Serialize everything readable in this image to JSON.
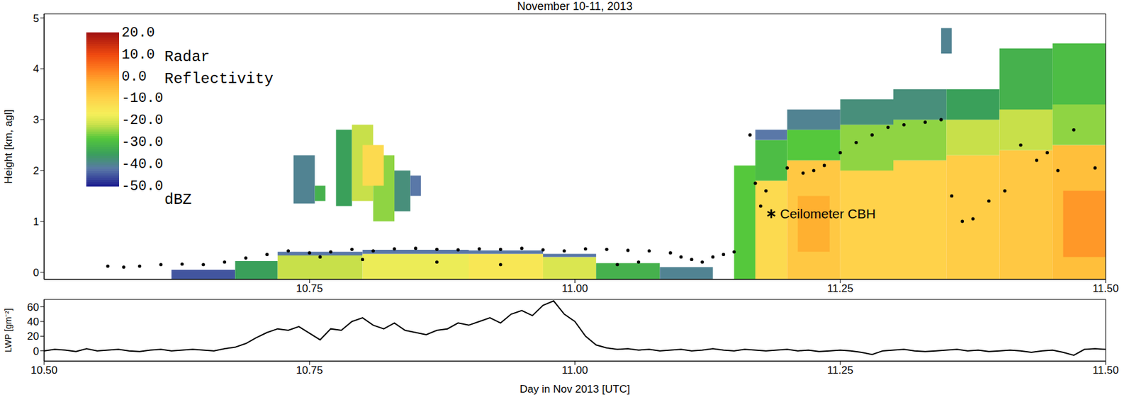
{
  "chart_data": [
    {
      "type": "heatmap",
      "title": "November 10-11, 2013",
      "ylabel": "Height [km, agl]",
      "xlim": [
        10.5,
        11.5
      ],
      "xticks": [
        10.75,
        {
          "value": 11,
          "label": "11.00"
        },
        11.25,
        {
          "value": 11.5,
          "label": "11.50"
        }
      ],
      "ylim": [
        -0.14,
        5.08
      ],
      "yticks": [
        0,
        1,
        2,
        3,
        4,
        5
      ],
      "colorbar": {
        "label": "Radar Reflectivity",
        "unit": "dBZ",
        "range": [
          -50,
          20
        ],
        "ticks": [
          {
            "value": -50,
            "label": "-50.0"
          },
          {
            "value": -40,
            "label": "-40.0"
          },
          {
            "value": -30,
            "label": "-30.0"
          },
          {
            "value": -20,
            "label": "-20.0"
          },
          {
            "value": -10,
            "label": "-10.0"
          },
          {
            "value": 0,
            "label": "0.0"
          },
          {
            "value": 10,
            "label": "10.0"
          },
          {
            "value": 20,
            "label": "20.0"
          }
        ]
      },
      "cells": [
        {
          "x0": 10.62,
          "x1": 10.68,
          "y0": -0.14,
          "y1": 0.05,
          "dbz": -45
        },
        {
          "x0": 10.68,
          "x1": 10.72,
          "y0": -0.14,
          "y1": 0.22,
          "dbz": -35
        },
        {
          "x0": 10.72,
          "x1": 10.8,
          "y0": -0.14,
          "y1": 0.33,
          "dbz": -22
        },
        {
          "x0": 10.72,
          "x1": 10.8,
          "y0": 0.33,
          "y1": 0.4,
          "dbz": -42
        },
        {
          "x0": 10.8,
          "x1": 10.9,
          "y0": -0.14,
          "y1": 0.36,
          "dbz": -18
        },
        {
          "x0": 10.8,
          "x1": 10.9,
          "y0": 0.36,
          "y1": 0.44,
          "dbz": -42
        },
        {
          "x0": 10.9,
          "x1": 10.97,
          "y0": -0.14,
          "y1": 0.36,
          "dbz": -15
        },
        {
          "x0": 10.9,
          "x1": 10.97,
          "y0": 0.36,
          "y1": 0.43,
          "dbz": -42
        },
        {
          "x0": 10.97,
          "x1": 11.02,
          "y0": -0.14,
          "y1": 0.3,
          "dbz": -20
        },
        {
          "x0": 10.97,
          "x1": 11.02,
          "y0": 0.3,
          "y1": 0.36,
          "dbz": -42
        },
        {
          "x0": 11.02,
          "x1": 11.08,
          "y0": -0.14,
          "y1": 0.18,
          "dbz": -32
        },
        {
          "x0": 11.08,
          "x1": 11.13,
          "y0": -0.14,
          "y1": 0.1,
          "dbz": -40
        },
        {
          "x0": 10.735,
          "x1": 10.755,
          "y0": 1.35,
          "y1": 2.3,
          "dbz": -40
        },
        {
          "x0": 10.755,
          "x1": 10.765,
          "y0": 1.4,
          "y1": 1.7,
          "dbz": -32
        },
        {
          "x0": 10.775,
          "x1": 10.79,
          "y0": 1.3,
          "y1": 2.8,
          "dbz": -35
        },
        {
          "x0": 10.79,
          "x1": 10.81,
          "y0": 1.4,
          "y1": 2.9,
          "dbz": -22
        },
        {
          "x0": 10.81,
          "x1": 10.83,
          "y0": 1.0,
          "y1": 2.3,
          "dbz": -25
        },
        {
          "x0": 10.83,
          "x1": 10.845,
          "y0": 1.2,
          "y1": 2.0,
          "dbz": -38
        },
        {
          "x0": 10.845,
          "x1": 10.855,
          "y0": 1.5,
          "y1": 1.9,
          "dbz": -42
        },
        {
          "x0": 10.8,
          "x1": 10.82,
          "y0": 1.7,
          "y1": 2.5,
          "dbz": -12
        },
        {
          "x0": 11.15,
          "x1": 11.17,
          "y0": -0.14,
          "y1": 2.1,
          "dbz": -28
        },
        {
          "x0": 11.17,
          "x1": 11.2,
          "y0": -0.14,
          "y1": 1.8,
          "dbz": -12
        },
        {
          "x0": 11.17,
          "x1": 11.2,
          "y0": 1.8,
          "y1": 2.6,
          "dbz": -30
        },
        {
          "x0": 11.17,
          "x1": 11.2,
          "y0": 2.6,
          "y1": 2.8,
          "dbz": -42
        },
        {
          "x0": 11.2,
          "x1": 11.25,
          "y0": -0.14,
          "y1": 2.2,
          "dbz": -8
        },
        {
          "x0": 11.2,
          "x1": 11.25,
          "y0": 2.2,
          "y1": 2.8,
          "dbz": -28
        },
        {
          "x0": 11.2,
          "x1": 11.25,
          "y0": 2.8,
          "y1": 3.2,
          "dbz": -40
        },
        {
          "x0": 11.25,
          "x1": 11.3,
          "y0": -0.14,
          "y1": 2.0,
          "dbz": -10
        },
        {
          "x0": 11.25,
          "x1": 11.3,
          "y0": 2.0,
          "y1": 2.9,
          "dbz": -25
        },
        {
          "x0": 11.25,
          "x1": 11.3,
          "y0": 2.9,
          "y1": 3.4,
          "dbz": -38
        },
        {
          "x0": 11.3,
          "x1": 11.35,
          "y0": -0.14,
          "y1": 2.2,
          "dbz": -10
        },
        {
          "x0": 11.3,
          "x1": 11.35,
          "y0": 2.2,
          "y1": 3.0,
          "dbz": -25
        },
        {
          "x0": 11.3,
          "x1": 11.35,
          "y0": 3.0,
          "y1": 3.6,
          "dbz": -38
        },
        {
          "x0": 11.35,
          "x1": 11.4,
          "y0": -0.14,
          "y1": 2.3,
          "dbz": -9
        },
        {
          "x0": 11.35,
          "x1": 11.4,
          "y0": 2.3,
          "y1": 3.0,
          "dbz": -22
        },
        {
          "x0": 11.35,
          "x1": 11.4,
          "y0": 3.0,
          "y1": 3.6,
          "dbz": -35
        },
        {
          "x0": 11.4,
          "x1": 11.45,
          "y0": -0.14,
          "y1": 2.4,
          "dbz": -8
        },
        {
          "x0": 11.4,
          "x1": 11.45,
          "y0": 2.4,
          "y1": 3.2,
          "dbz": -22
        },
        {
          "x0": 11.4,
          "x1": 11.45,
          "y0": 3.2,
          "y1": 4.4,
          "dbz": -32
        },
        {
          "x0": 11.45,
          "x1": 11.5,
          "y0": -0.14,
          "y1": 2.5,
          "dbz": -6
        },
        {
          "x0": 11.45,
          "x1": 11.5,
          "y0": 2.5,
          "y1": 3.3,
          "dbz": -25
        },
        {
          "x0": 11.45,
          "x1": 11.5,
          "y0": 3.3,
          "y1": 4.5,
          "dbz": -30
        },
        {
          "x0": 11.345,
          "x1": 11.355,
          "y0": 4.3,
          "y1": 4.8,
          "dbz": -40
        },
        {
          "x0": 11.21,
          "x1": 11.24,
          "y0": 0.4,
          "y1": 1.5,
          "dbz": -3
        },
        {
          "x0": 11.46,
          "x1": 11.5,
          "y0": 0.3,
          "y1": 1.6,
          "dbz": 0
        }
      ],
      "ceilometer_cbh": {
        "color": "#000000",
        "marker": "circle",
        "points": [
          [
            10.56,
            0.12
          ],
          [
            10.575,
            0.1
          ],
          [
            10.59,
            0.12
          ],
          [
            10.61,
            0.15
          ],
          [
            10.63,
            0.16
          ],
          [
            10.65,
            0.15
          ],
          [
            10.67,
            0.2
          ],
          [
            10.69,
            0.28
          ],
          [
            10.71,
            0.35
          ],
          [
            10.73,
            0.42
          ],
          [
            10.75,
            0.38
          ],
          [
            10.76,
            0.3
          ],
          [
            10.77,
            0.4
          ],
          [
            10.79,
            0.45
          ],
          [
            10.8,
            0.25
          ],
          [
            10.81,
            0.42
          ],
          [
            10.83,
            0.46
          ],
          [
            10.85,
            0.47
          ],
          [
            10.87,
            0.45
          ],
          [
            10.87,
            0.2
          ],
          [
            10.89,
            0.44
          ],
          [
            10.91,
            0.46
          ],
          [
            10.93,
            0.45
          ],
          [
            10.93,
            0.15
          ],
          [
            10.95,
            0.47
          ],
          [
            10.97,
            0.44
          ],
          [
            10.99,
            0.42
          ],
          [
            11.01,
            0.46
          ],
          [
            11.03,
            0.45
          ],
          [
            11.04,
            0.15
          ],
          [
            11.05,
            0.43
          ],
          [
            11.06,
            0.2
          ],
          [
            11.07,
            0.42
          ],
          [
            11.09,
            0.38
          ],
          [
            11.1,
            0.3
          ],
          [
            11.11,
            0.25
          ],
          [
            11.12,
            0.2
          ],
          [
            11.13,
            0.3
          ],
          [
            11.14,
            0.35
          ],
          [
            11.15,
            0.4
          ],
          [
            11.165,
            2.7
          ],
          [
            11.17,
            1.75
          ],
          [
            11.175,
            1.3
          ],
          [
            11.18,
            1.6
          ],
          [
            11.2,
            2.05
          ],
          [
            11.215,
            1.95
          ],
          [
            11.225,
            2.0
          ],
          [
            11.235,
            2.1
          ],
          [
            11.25,
            2.35
          ],
          [
            11.265,
            2.55
          ],
          [
            11.28,
            2.7
          ],
          [
            11.295,
            2.85
          ],
          [
            11.31,
            2.9
          ],
          [
            11.33,
            2.95
          ],
          [
            11.345,
            3.0
          ],
          [
            11.355,
            1.5
          ],
          [
            11.365,
            1.0
          ],
          [
            11.375,
            1.05
          ],
          [
            11.39,
            1.4
          ],
          [
            11.405,
            1.6
          ],
          [
            11.42,
            2.5
          ],
          [
            11.435,
            2.2
          ],
          [
            11.445,
            2.35
          ],
          [
            11.455,
            2.0
          ],
          [
            11.47,
            2.8
          ],
          [
            11.49,
            2.05
          ]
        ]
      },
      "annotations": [
        {
          "text": "Ceilometer CBH",
          "x": 11.185,
          "y": 1.15,
          "marker": "asterisk"
        }
      ]
    },
    {
      "type": "line",
      "ylabel": "LWP [gm⁻²]",
      "xlabel": "Day in Nov 2013 [UTC]",
      "color": "#000000",
      "xlim": [
        10.5,
        11.5
      ],
      "xticks": [
        {
          "value": 10.5,
          "label": "10.50"
        },
        10.75,
        {
          "value": 11,
          "label": "11.00"
        },
        11.25,
        {
          "value": 11.5,
          "label": "11.50"
        }
      ],
      "ylim": [
        -14,
        70
      ],
      "yticks": [
        0,
        20,
        40,
        60
      ],
      "x": [
        10.5,
        10.51,
        10.52,
        10.53,
        10.54,
        10.55,
        10.56,
        10.57,
        10.58,
        10.59,
        10.6,
        10.61,
        10.62,
        10.63,
        10.64,
        10.65,
        10.66,
        10.67,
        10.68,
        10.69,
        10.7,
        10.71,
        10.72,
        10.73,
        10.74,
        10.75,
        10.76,
        10.77,
        10.78,
        10.79,
        10.8,
        10.81,
        10.82,
        10.83,
        10.84,
        10.85,
        10.86,
        10.87,
        10.88,
        10.89,
        10.9,
        10.91,
        10.92,
        10.93,
        10.94,
        10.95,
        10.96,
        10.97,
        10.98,
        10.99,
        11.0,
        11.01,
        11.02,
        11.03,
        11.04,
        11.05,
        11.06,
        11.07,
        11.08,
        11.09,
        11.1,
        11.11,
        11.12,
        11.13,
        11.14,
        11.15,
        11.16,
        11.17,
        11.18,
        11.19,
        11.2,
        11.21,
        11.22,
        11.23,
        11.24,
        11.25,
        11.26,
        11.27,
        11.28,
        11.29,
        11.3,
        11.31,
        11.32,
        11.33,
        11.34,
        11.35,
        11.36,
        11.37,
        11.38,
        11.39,
        11.4,
        11.41,
        11.42,
        11.43,
        11.44,
        11.45,
        11.46,
        11.47,
        11.48,
        11.49,
        11.5
      ],
      "values": [
        0,
        2,
        1,
        -1,
        3,
        0,
        1,
        2,
        0,
        -1,
        1,
        2,
        0,
        1,
        2,
        1,
        0,
        3,
        5,
        10,
        18,
        25,
        30,
        28,
        33,
        24,
        15,
        30,
        28,
        40,
        45,
        35,
        30,
        38,
        28,
        25,
        22,
        28,
        30,
        38,
        35,
        40,
        45,
        38,
        50,
        55,
        48,
        62,
        68,
        50,
        40,
        20,
        8,
        4,
        2,
        3,
        1,
        2,
        0,
        1,
        2,
        0,
        1,
        3,
        1,
        0,
        2,
        1,
        0,
        1,
        2,
        0,
        1,
        -1,
        0,
        1,
        0,
        -2,
        -5,
        0,
        1,
        2,
        0,
        -1,
        0,
        1,
        2,
        0,
        1,
        -1,
        0,
        1,
        0,
        -2,
        0,
        1,
        -2,
        -6,
        2,
        3,
        2
      ]
    }
  ]
}
